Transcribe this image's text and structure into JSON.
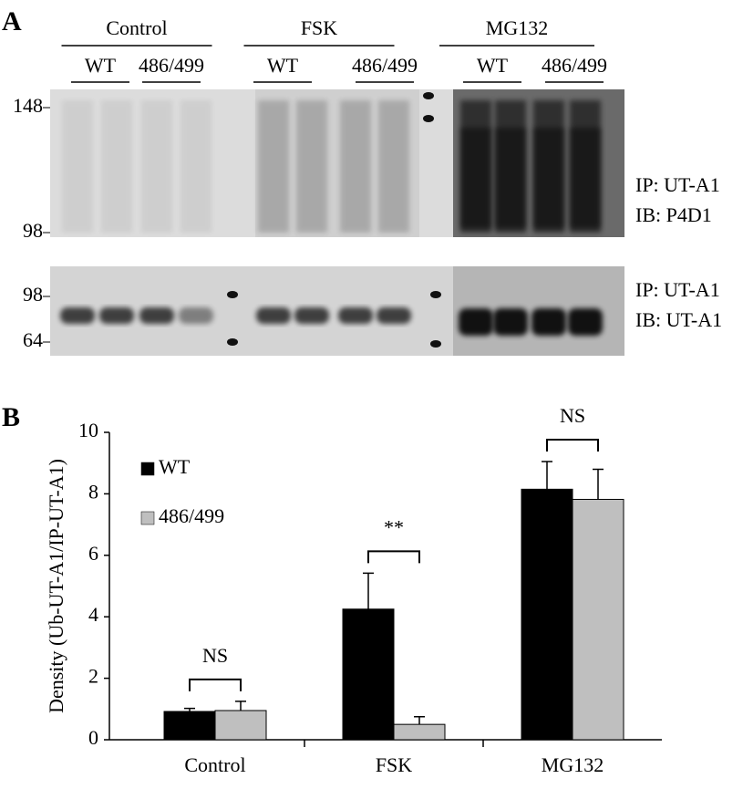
{
  "panel_a": {
    "label": "A",
    "groups": [
      {
        "name": "Control",
        "subgroups": [
          "WT",
          "486/499"
        ]
      },
      {
        "name": "FSK",
        "subgroups": [
          "WT",
          "486/499"
        ]
      },
      {
        "name": "MG132",
        "subgroups": [
          "WT",
          "486/499"
        ]
      }
    ],
    "blots": [
      {
        "markers": [
          "148",
          "98"
        ],
        "labels": [
          "IP: UT-A1",
          "IB: P4D1"
        ]
      },
      {
        "markers": [
          "98",
          "64"
        ],
        "labels": [
          "IP: UT-A1",
          "IB: UT-A1"
        ]
      }
    ]
  },
  "chart_data": {
    "type": "bar",
    "label": "B",
    "y_label": "Density (Ub-UT-A1/IP-UT-A1)",
    "categories": [
      "Control",
      "FSK",
      "MG132"
    ],
    "series": [
      {
        "name": "WT",
        "color": "#000000",
        "values": [
          0.92,
          4.25,
          8.15
        ],
        "errors": [
          0.1,
          1.17,
          0.9
        ]
      },
      {
        "name": "486/499",
        "color": "#bfbfbf",
        "values": [
          0.95,
          0.5,
          7.82
        ],
        "errors": [
          0.3,
          0.25,
          0.98
        ]
      }
    ],
    "annotations": [
      "NS",
      "**",
      "NS"
    ],
    "ylim": [
      0,
      10
    ],
    "yticks": [
      0,
      2,
      4,
      6,
      8,
      10
    ],
    "grid": false,
    "legend": "top-left"
  }
}
